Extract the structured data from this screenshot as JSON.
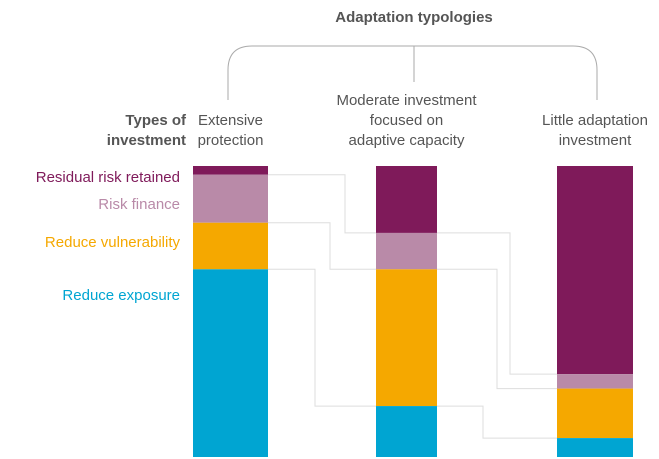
{
  "chart_data": {
    "type": "stacked-bar",
    "title": "Adaptation typologies",
    "row_label": [
      "Types of",
      "investment"
    ],
    "categories": [
      [
        "Extensive",
        "protection"
      ],
      [
        "Moderate investment",
        "focused on",
        "adaptive capacity"
      ],
      [
        "Little adaptation",
        "investment"
      ]
    ],
    "series": [
      {
        "name": "Residual risk retained",
        "color": "#7f1a5a",
        "values": [
          3,
          23,
          71.5
        ]
      },
      {
        "name": "Risk finance",
        "color": "#b98aa8",
        "values": [
          16.5,
          12.5,
          5
        ]
      },
      {
        "name": "Reduce vulnerability",
        "color": "#f5a800",
        "values": [
          16,
          47,
          17
        ]
      },
      {
        "name": "Reduce exposure",
        "color": "#00a5d2",
        "values": [
          64.5,
          17.5,
          6.5
        ]
      }
    ]
  }
}
